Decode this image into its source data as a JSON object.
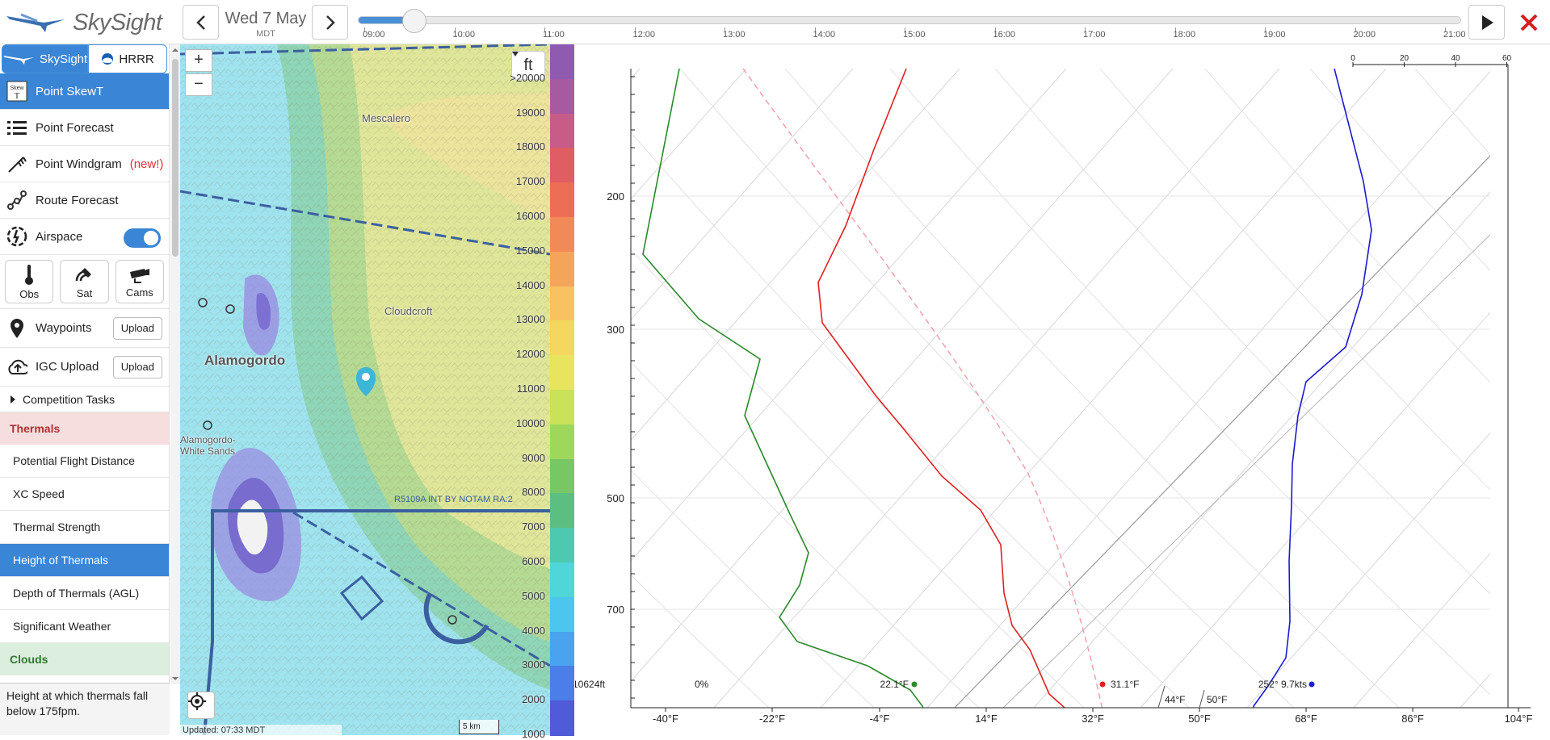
{
  "app": {
    "brand": "SkySight",
    "date": "Wed 7 May",
    "timezone": "MDT",
    "timeline": {
      "hours": [
        "09:00",
        "10:00",
        "11:00",
        "12:00",
        "13:00",
        "14:00",
        "15:00",
        "16:00",
        "17:00",
        "18:00",
        "19:00",
        "20:00",
        "21:00"
      ],
      "position_fraction": 0.042
    }
  },
  "sidebar": {
    "models": [
      {
        "label": "SkySight",
        "selected": true
      },
      {
        "label": "HRRR",
        "selected": false
      }
    ],
    "items": [
      {
        "label": "Point SkewT",
        "icon": "skewt-icon",
        "active": true
      },
      {
        "label": "Point Forecast",
        "icon": "list-icon",
        "active": false
      },
      {
        "label": "Point Windgram",
        "badge": "(new!)",
        "icon": "windgram-icon",
        "active": false
      },
      {
        "label": "Route Forecast",
        "icon": "route-icon",
        "active": false
      },
      {
        "label": "Airspace",
        "icon": "airspace-icon",
        "toggle": true
      }
    ],
    "obs": [
      {
        "label": "Obs",
        "icon": "thermometer-icon"
      },
      {
        "label": "Sat",
        "icon": "satellite-icon"
      },
      {
        "label": "Cams",
        "icon": "camera-icon"
      }
    ],
    "waypoints": {
      "label": "Waypoints",
      "button": "Upload"
    },
    "igc": {
      "label": "IGC Upload",
      "button": "Upload"
    },
    "competition": "Competition Tasks",
    "thermals_section": "Thermals",
    "thermal_items": [
      {
        "label": "Potential Flight Distance",
        "active": false
      },
      {
        "label": "XC Speed",
        "active": false
      },
      {
        "label": "Thermal Strength",
        "active": false
      },
      {
        "label": "Height of Thermals",
        "active": true
      },
      {
        "label": "Depth of Thermals (AGL)",
        "active": false
      },
      {
        "label": "Significant Weather",
        "active": false
      }
    ],
    "clouds_section": "Clouds",
    "description": "Height at which thermals fall below 175fpm."
  },
  "map": {
    "units": "ft",
    "places": [
      "Mescalero",
      "Cloudcroft",
      "Alamogordo",
      "Alamogordo-",
      "White Sands"
    ],
    "airspace_label": "R5109A INT BY NOTAM   RA:2",
    "updated": "Updated: 07:33 MDT",
    "scale": "5 km",
    "legend": [
      ">20000",
      "19000",
      "18000",
      "17000",
      "16000",
      "15000",
      "14000",
      "13000",
      "12000",
      "11000",
      "10000",
      "9000",
      "8000",
      "7000",
      "6000",
      "5000",
      "4000",
      "3000",
      "2000",
      "1000"
    ],
    "legend_colors": [
      "#8e5bb0",
      "#a75aa0",
      "#c85c88",
      "#e05d63",
      "#ee6d55",
      "#f18a57",
      "#f5a55a",
      "#f7c25f",
      "#f3d75e",
      "#e9e45e",
      "#c9e25a",
      "#9fd75b",
      "#77c864",
      "#5cbf82",
      "#4dc9b0",
      "#4fd6d8",
      "#4cc6ef",
      "#4aa3ee",
      "#4b7ee8",
      "#4f5bd8"
    ],
    "colors": {
      "accent": "#3a85d5",
      "thermals_bg": "#f6dede",
      "clouds_bg": "#dceedd"
    }
  },
  "chart_data": {
    "type": "line",
    "title": "",
    "xlabel": "",
    "ylabel": "",
    "x_ticks": [
      "-40°F",
      "-22°F",
      "-4°F",
      "14°F",
      "32°F",
      "50°F",
      "68°F",
      "86°F",
      "104°F"
    ],
    "pressure_ticks": [
      "200",
      "300",
      "500",
      "700"
    ],
    "wind_scale_ticks": [
      "0",
      "20",
      "40",
      "60"
    ],
    "surface": {
      "height_label": "10624ft",
      "rh_label": "0%",
      "dewpoint_label": "22.1°F",
      "temperature_label": "31.1°F",
      "wind_label": "252° 9.7kts",
      "t1_label": "44°F",
      "t2_label": "50°F"
    },
    "series": [
      {
        "name": "",
        "color": "#2a8a2a"
      },
      {
        "name": "",
        "color": "#e02020"
      },
      {
        "name": "",
        "color": "#f2a0a8"
      },
      {
        "name": "",
        "color": "#1a1ad0"
      }
    ]
  }
}
